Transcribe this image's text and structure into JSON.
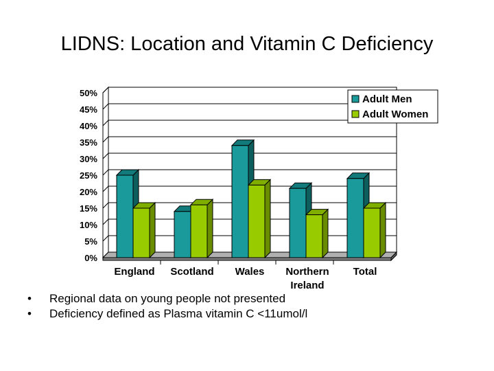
{
  "slide": {
    "title": "LIDNS: Location and Vitamin C Deficiency",
    "bullets": [
      "Regional data on young people not presented",
      "Deficiency defined as Plasma vitamin C <11umol/l"
    ]
  },
  "chart_data": {
    "type": "bar",
    "title": "",
    "xlabel": "",
    "ylabel": "",
    "categories": [
      [
        "England"
      ],
      [
        "Scotland"
      ],
      [
        "Wales"
      ],
      [
        "Northern",
        "Ireland"
      ],
      [
        "Total"
      ]
    ],
    "series": [
      {
        "name": "Adult Men",
        "values": [
          25,
          14,
          34,
          21,
          24
        ],
        "color": "#1a9a9a",
        "side": "#0e5e5e",
        "top": "#127a7a"
      },
      {
        "name": "Adult Women",
        "values": [
          15,
          16,
          22,
          13,
          15
        ],
        "color": "#99cc00",
        "side": "#6a8c00",
        "top": "#7fae00"
      }
    ],
    "yticks": [
      "0%",
      "5%",
      "10%",
      "15%",
      "20%",
      "25%",
      "30%",
      "35%",
      "40%",
      "45%",
      "50%"
    ],
    "ylim": [
      0,
      50
    ],
    "grid": true,
    "legend": "top-right"
  }
}
